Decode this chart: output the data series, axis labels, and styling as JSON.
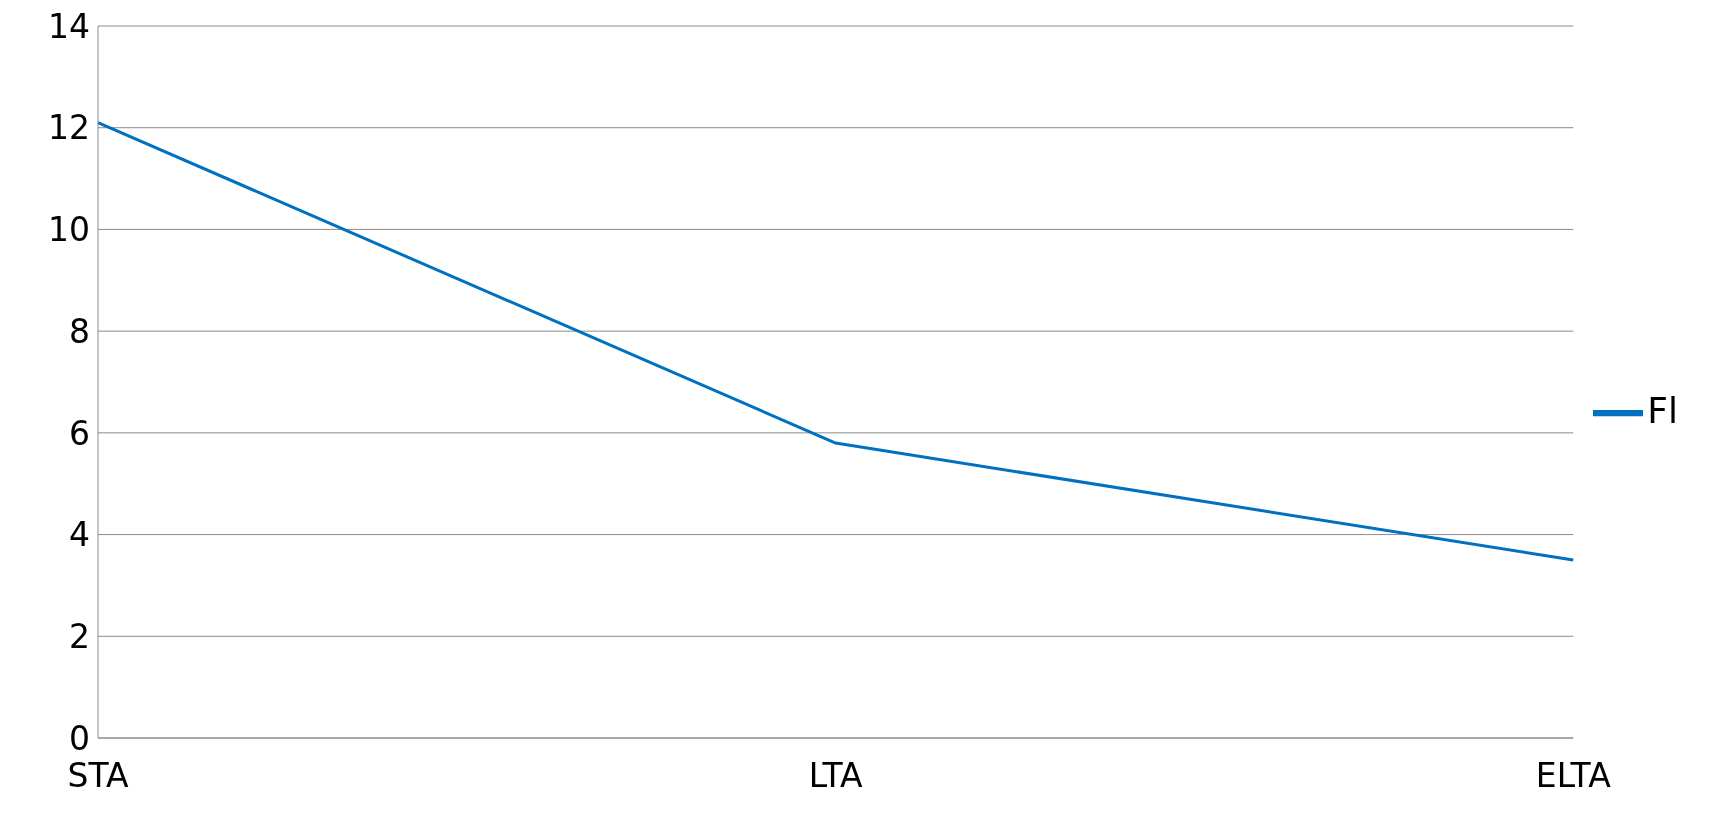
{
  "chart_data": {
    "type": "line",
    "categories": [
      "STA",
      "LTA",
      "ELTA"
    ],
    "series": [
      {
        "name": "Fl",
        "color": "#0070c0",
        "values": [
          12.1,
          5.8,
          3.5
        ]
      }
    ],
    "ylim": [
      0,
      14
    ],
    "yticks": [
      0,
      2,
      4,
      6,
      8,
      10,
      12,
      14
    ],
    "grid": "y",
    "legend": "right",
    "marker": "none"
  }
}
